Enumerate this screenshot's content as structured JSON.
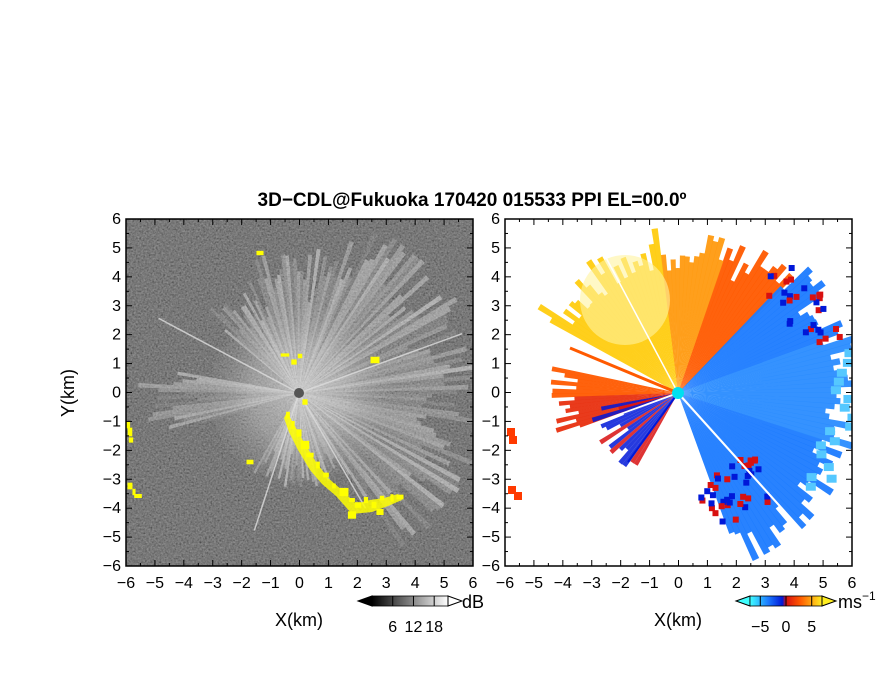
{
  "chart_data": [
    {
      "type": "heatmap",
      "title": "3D−CDL@Fukuoka 170420 015533 PPI EL=00.0º",
      "xlabel": "X(km)",
      "ylabel": "Y(km)",
      "xlim": [
        -6,
        6
      ],
      "ylim": [
        -6,
        6
      ],
      "xticks": [
        "−6",
        "−5",
        "−4",
        "−3",
        "−2",
        "−1",
        "0",
        "1",
        "2",
        "3",
        "4",
        "5",
        "6"
      ],
      "yticks": [
        "6",
        "5",
        "4",
        "3",
        "2",
        "1",
        "0",
        "−1",
        "−2",
        "−3",
        "−4",
        "−5",
        "−6"
      ],
      "colormap": "grayscale",
      "colorbar": {
        "unit": "dB",
        "ticks": [
          "6",
          "12",
          "18"
        ],
        "range": [
          0,
          22
        ]
      },
      "highlight_color": "#ffff00"
    },
    {
      "type": "heatmap",
      "xlabel": "X(km)",
      "xlim": [
        -6,
        6
      ],
      "ylim": [
        -6,
        6
      ],
      "xticks": [
        "−6",
        "−5",
        "−4",
        "−3",
        "−2",
        "−1",
        "0",
        "1",
        "2",
        "3",
        "4",
        "5",
        "6"
      ],
      "yticks": [
        "6",
        "5",
        "4",
        "3",
        "2",
        "1",
        "0",
        "−1",
        "−2",
        "−3",
        "−4",
        "−5",
        "−6"
      ],
      "colormap": "cyan-blue-red-orange-yellow",
      "colorbar": {
        "unit": "ms",
        "unit_exponent": "−1",
        "ticks": [
          "−5",
          "0",
          "5"
        ],
        "range": [
          -7,
          7
        ]
      },
      "center_marker_color": "#00e0f0"
    }
  ]
}
